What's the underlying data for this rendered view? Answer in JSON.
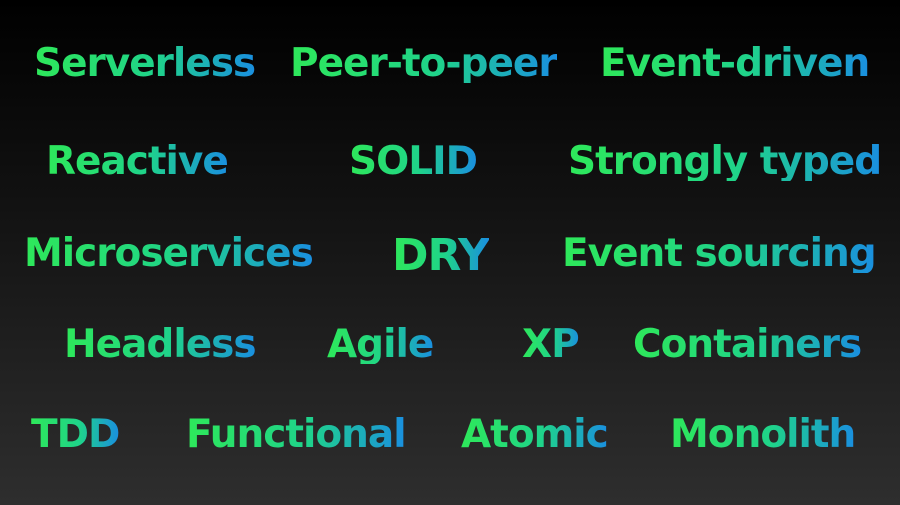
{
  "terms": [
    "Serverless",
    "Peer-to-peer",
    "Event-driven",
    "Reactive",
    "SOLID",
    "Strongly typed",
    "Microservices",
    "DRY",
    "Event sourcing",
    "Headless",
    "Agile",
    "XP",
    "Containers",
    "TDD",
    "Functional",
    "Atomic",
    "Monolith"
  ],
  "colors": {
    "gradient_start": "#2ee85a",
    "gradient_mid": "#1fd38a",
    "gradient_end": "#1a8fe0",
    "background_top": "#000000",
    "background_bottom": "#2e2e2e"
  }
}
